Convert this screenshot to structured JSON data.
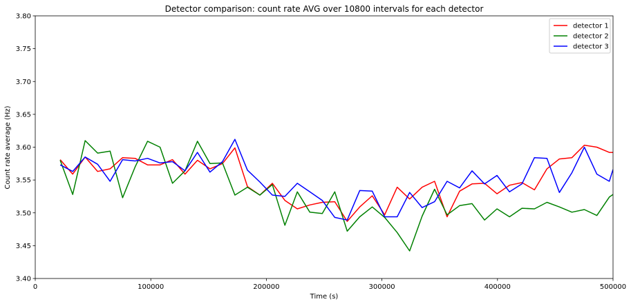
{
  "chart_data": {
    "type": "line",
    "title": "Detector comparison: count rate AVG over 10800 intervals for each detector",
    "xlabel": "Time (s)",
    "ylabel": "Count rate average (Hz)",
    "xlim": [
      0,
      500000
    ],
    "ylim": [
      3.4,
      3.8
    ],
    "xticks": [
      0,
      100000,
      200000,
      300000,
      400000,
      500000
    ],
    "xtick_labels": [
      "0",
      "100000",
      "200000",
      "300000",
      "400000",
      "500000"
    ],
    "yticks": [
      3.4,
      3.45,
      3.5,
      3.55,
      3.6,
      3.65,
      3.7,
      3.75,
      3.8
    ],
    "ytick_labels": [
      "3.40",
      "3.45",
      "3.50",
      "3.55",
      "3.60",
      "3.65",
      "3.70",
      "3.75",
      "3.80"
    ],
    "grid": false,
    "legend_position": "top-right",
    "x": [
      21600,
      32400,
      43200,
      54000,
      64800,
      75600,
      86400,
      97200,
      108000,
      118800,
      129600,
      140400,
      151200,
      162000,
      172800,
      183600,
      194400,
      205200,
      216000,
      226800,
      237600,
      248400,
      259200,
      270000,
      280800,
      291600,
      302400,
      313200,
      324000,
      334800,
      345600,
      356400,
      367200,
      378000,
      388800,
      399600,
      410400,
      421200,
      432000,
      442800,
      453600,
      464400,
      475200,
      486000,
      496800,
      500000
    ],
    "series": [
      {
        "name": "detector 1",
        "color": "#ff0000",
        "values": [
          3.581,
          3.559,
          3.585,
          3.563,
          3.567,
          3.584,
          3.583,
          3.573,
          3.573,
          3.581,
          3.559,
          3.58,
          3.567,
          3.575,
          3.599,
          3.54,
          3.527,
          3.545,
          3.519,
          3.506,
          3.512,
          3.516,
          3.517,
          3.487,
          3.509,
          3.526,
          3.497,
          3.539,
          3.521,
          3.539,
          3.548,
          3.494,
          3.533,
          3.544,
          3.545,
          3.529,
          3.542,
          3.546,
          3.535,
          3.567,
          3.582,
          3.584,
          3.603,
          3.6,
          3.592,
          3.592
        ]
      },
      {
        "name": "detector 2",
        "color": "#008000",
        "values": [
          3.58,
          3.528,
          3.61,
          3.591,
          3.594,
          3.523,
          3.57,
          3.609,
          3.6,
          3.545,
          3.564,
          3.609,
          3.575,
          3.576,
          3.527,
          3.539,
          3.527,
          3.543,
          3.481,
          3.532,
          3.501,
          3.499,
          3.532,
          3.472,
          3.494,
          3.509,
          3.493,
          3.47,
          3.442,
          3.495,
          3.536,
          3.497,
          3.511,
          3.514,
          3.489,
          3.506,
          3.494,
          3.507,
          3.506,
          3.516,
          3.509,
          3.501,
          3.505,
          3.496,
          3.524,
          3.528
        ]
      },
      {
        "name": "detector 3",
        "color": "#0000ff",
        "values": [
          3.573,
          3.563,
          3.585,
          3.574,
          3.548,
          3.581,
          3.579,
          3.583,
          3.576,
          3.578,
          3.564,
          3.592,
          3.562,
          3.578,
          3.612,
          3.565,
          3.547,
          3.527,
          3.525,
          3.545,
          3.532,
          3.519,
          3.493,
          3.489,
          3.534,
          3.533,
          3.494,
          3.494,
          3.531,
          3.508,
          3.517,
          3.548,
          3.538,
          3.564,
          3.544,
          3.557,
          3.532,
          3.544,
          3.584,
          3.583,
          3.531,
          3.561,
          3.6,
          3.559,
          3.548,
          3.566
        ]
      }
    ]
  }
}
